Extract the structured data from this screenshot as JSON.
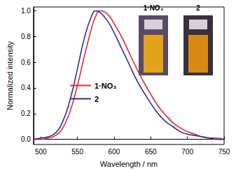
{
  "chart_data": {
    "type": "line",
    "x_label": "Wavelength / nm",
    "y_label": "Normalized intensity",
    "x": [
      490,
      500,
      510,
      520,
      530,
      540,
      550,
      560,
      570,
      575,
      580,
      590,
      600,
      610,
      620,
      630,
      640,
      650,
      660,
      670,
      680,
      690,
      700,
      710,
      720,
      730,
      740,
      750
    ],
    "series": [
      {
        "name": "1·NO₃",
        "color": "#e8262a",
        "values": [
          0,
          0,
          0.01,
          0.03,
          0.09,
          0.22,
          0.42,
          0.66,
          0.88,
          0.96,
          1.0,
          0.98,
          0.9,
          0.8,
          0.68,
          0.56,
          0.45,
          0.35,
          0.26,
          0.19,
          0.13,
          0.09,
          0.06,
          0.04,
          0.02,
          0.01,
          0.01,
          0
        ]
      },
      {
        "name": "2",
        "color": "#2b2f8f",
        "values": [
          0,
          0.01,
          0.02,
          0.05,
          0.14,
          0.31,
          0.55,
          0.8,
          0.97,
          1.0,
          0.99,
          0.93,
          0.83,
          0.71,
          0.59,
          0.47,
          0.37,
          0.28,
          0.2,
          0.14,
          0.1,
          0.06,
          0.04,
          0.03,
          0.02,
          0.01,
          0,
          0
        ]
      }
    ],
    "xlim": [
      490,
      750
    ],
    "xticks": [
      500,
      550,
      600,
      650,
      700,
      750
    ],
    "ylim": [
      -0.04,
      1.03
    ],
    "yticks": [
      {
        "value": 0,
        "label": "0.0"
      },
      0.2,
      0.4,
      0.6,
      0.8,
      {
        "value": 1,
        "label": "1.0"
      }
    ],
    "grid": false,
    "legend": "left",
    "line_style": "solid",
    "marker": "none"
  }
}
